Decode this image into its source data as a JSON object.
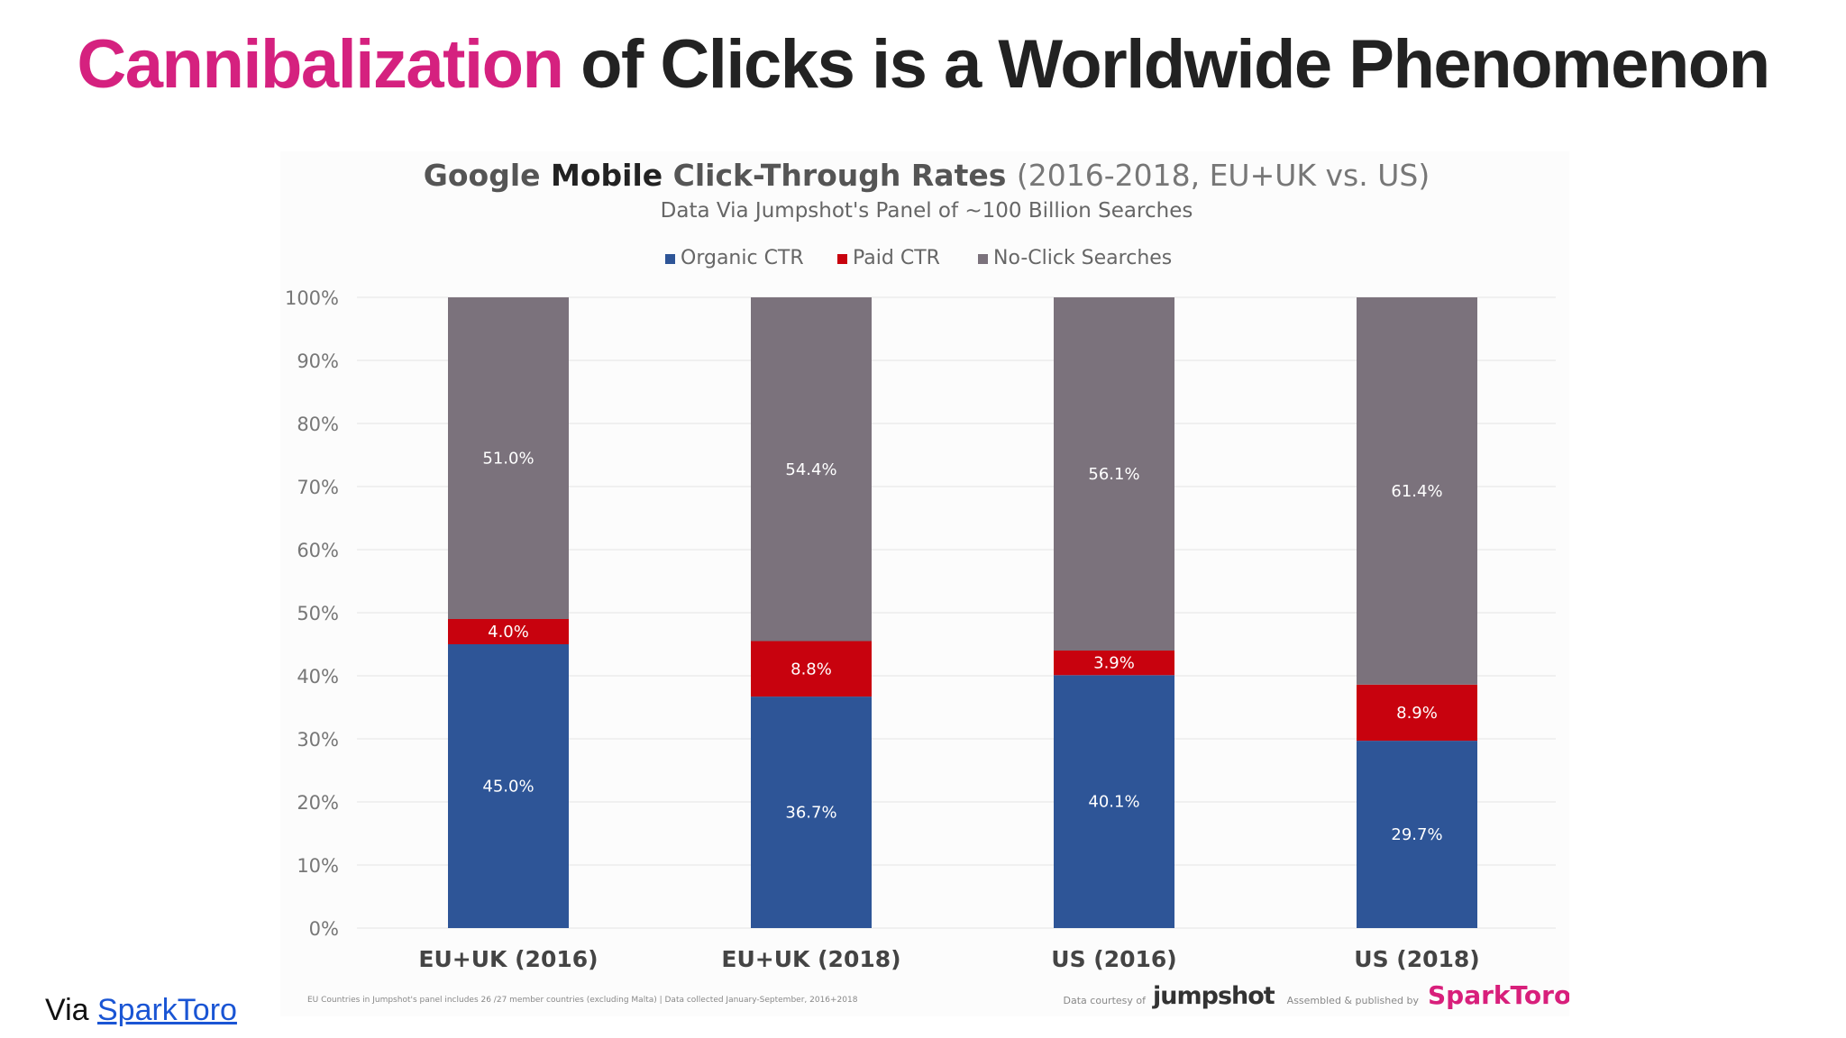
{
  "slide": {
    "title_accent": "Cannibalization",
    "title_rest": " of Clicks is a Worldwide Phenomenon",
    "via_prefix": "Via ",
    "via_link": "SparkToro"
  },
  "chart_data": {
    "type": "bar",
    "stacked": true,
    "title_parts": [
      {
        "text": "Google ",
        "bold": false
      },
      {
        "text": "Mobile",
        "bold": true
      },
      {
        "text": " Click-Through Rates ",
        "bold": false
      },
      {
        "text": "(2016-2018, EU+UK vs. US)",
        "light": true
      }
    ],
    "title": "Google Mobile Click-Through Rates (2016-2018, EU+UK vs. US)",
    "subtitle": "Data Via Jumpshot's Panel of ~100 Billion Searches",
    "categories": [
      "EU+UK (2016)",
      "EU+UK (2018)",
      "US (2016)",
      "US (2018)"
    ],
    "series": [
      {
        "name": "Organic CTR",
        "color": "#2e5597",
        "values": [
          45.0,
          36.7,
          40.1,
          29.7
        ],
        "labels": [
          "45.0%",
          "36.7%",
          "40.1%",
          "29.7%"
        ]
      },
      {
        "name": "Paid CTR",
        "color": "#c8020e",
        "values": [
          4.0,
          8.8,
          3.9,
          8.9
        ],
        "labels": [
          "4.0%",
          "8.8%",
          "3.9%",
          "8.9%"
        ]
      },
      {
        "name": "No-Click Searches",
        "color": "#7b727c",
        "values": [
          51.0,
          54.4,
          56.1,
          61.4
        ],
        "labels": [
          "51.0%",
          "54.4%",
          "56.1%",
          "61.4%"
        ]
      }
    ],
    "ylim": [
      0,
      100
    ],
    "yticks": [
      "0%",
      "10%",
      "20%",
      "30%",
      "40%",
      "50%",
      "60%",
      "70%",
      "80%",
      "90%",
      "100%"
    ],
    "grid": true,
    "legend_position": "top-center",
    "footnote": "EU Countries in Jumpshot's panel includes 26 /27 member countries (excluding Malta) | Data collected January-September, 2016+2018",
    "credit_prefix": "Data courtesy of",
    "credit_brand": "jumpshot",
    "publisher_prefix": "Assembled & published by",
    "publisher_brand": "SparkToro"
  }
}
